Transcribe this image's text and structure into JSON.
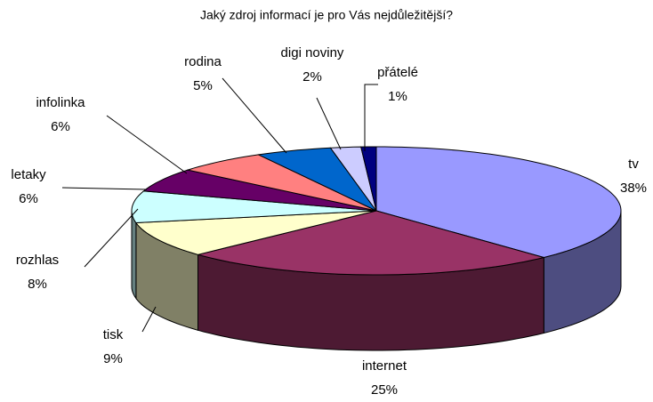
{
  "chart_data": {
    "type": "pie3d",
    "title": "Jaký zdroj informací je pro Vás nejdůležitější?",
    "categories": [
      "tv",
      "internet",
      "tisk",
      "rozhlas",
      "letaky",
      "infolinka",
      "rodina",
      "digi noviny",
      "přátelé"
    ],
    "values": [
      38,
      25,
      9,
      8,
      6,
      6,
      5,
      2,
      1
    ],
    "value_labels": [
      "38%",
      "25%",
      "9%",
      "8%",
      "6%",
      "6%",
      "5%",
      "2%",
      "1%"
    ],
    "colors": [
      "#9999ff",
      "#993366",
      "#ffffcc",
      "#ccffff",
      "#660066",
      "#ff8080",
      "#0066cc",
      "#ccccff",
      "#000080"
    ]
  }
}
